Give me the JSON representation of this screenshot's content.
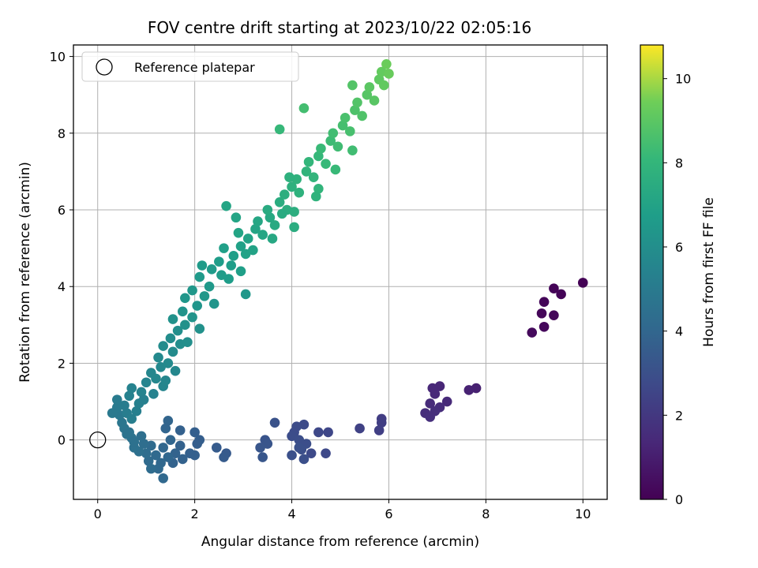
{
  "chart_data": {
    "type": "scatter",
    "title": "FOV centre drift starting at 2023/10/22 02:05:16",
    "xlabel": "Angular distance from reference (arcmin)",
    "ylabel": "Rotation from reference (arcmin)",
    "xlim": [
      -0.5,
      10.5
    ],
    "ylim": [
      -1.55,
      10.3
    ],
    "xticks": [
      0,
      2,
      4,
      6,
      8,
      10
    ],
    "yticks": [
      0,
      2,
      4,
      6,
      8,
      10
    ],
    "grid": true,
    "legend": {
      "position": "top-left",
      "entries": [
        "Reference platepar"
      ]
    },
    "reference_point": {
      "x": 0,
      "y": 0,
      "label": "Reference platepar"
    },
    "colorbar": {
      "label": "Hours from first FF file",
      "range": [
        0,
        10.8
      ],
      "ticks": [
        0,
        2,
        4,
        6,
        8,
        10
      ],
      "colormap": "viridis"
    },
    "series": [
      {
        "color_by": "hours",
        "points": [
          {
            "x": 10.0,
            "y": 4.1,
            "h": 0.05
          },
          {
            "x": 9.4,
            "y": 3.95,
            "h": 0.1
          },
          {
            "x": 9.55,
            "y": 3.8,
            "h": 0.12
          },
          {
            "x": 9.2,
            "y": 3.6,
            "h": 0.15
          },
          {
            "x": 9.15,
            "y": 3.3,
            "h": 0.2
          },
          {
            "x": 9.4,
            "y": 3.25,
            "h": 0.22
          },
          {
            "x": 9.2,
            "y": 2.95,
            "h": 0.25
          },
          {
            "x": 8.95,
            "y": 2.8,
            "h": 0.3
          },
          {
            "x": 7.8,
            "y": 1.35,
            "h": 1.1
          },
          {
            "x": 7.65,
            "y": 1.3,
            "h": 1.15
          },
          {
            "x": 7.05,
            "y": 1.4,
            "h": 1.3
          },
          {
            "x": 6.9,
            "y": 1.35,
            "h": 1.35
          },
          {
            "x": 6.95,
            "y": 1.2,
            "h": 1.4
          },
          {
            "x": 7.2,
            "y": 1.0,
            "h": 1.45
          },
          {
            "x": 6.85,
            "y": 0.95,
            "h": 1.5
          },
          {
            "x": 7.05,
            "y": 0.85,
            "h": 1.55
          },
          {
            "x": 6.75,
            "y": 0.7,
            "h": 1.6
          },
          {
            "x": 6.95,
            "y": 0.75,
            "h": 1.62
          },
          {
            "x": 6.85,
            "y": 0.6,
            "h": 1.65
          },
          {
            "x": 5.85,
            "y": 0.55,
            "h": 2.2
          },
          {
            "x": 5.85,
            "y": 0.45,
            "h": 2.25
          },
          {
            "x": 5.8,
            "y": 0.25,
            "h": 2.3
          },
          {
            "x": 5.4,
            "y": 0.3,
            "h": 2.4
          },
          {
            "x": 4.75,
            "y": 0.2,
            "h": 2.6
          },
          {
            "x": 4.55,
            "y": 0.2,
            "h": 2.65
          },
          {
            "x": 4.7,
            "y": -0.35,
            "h": 2.7
          },
          {
            "x": 4.4,
            "y": -0.35,
            "h": 2.75
          },
          {
            "x": 4.25,
            "y": 0.4,
            "h": 2.8
          },
          {
            "x": 4.1,
            "y": 0.35,
            "h": 2.82
          },
          {
            "x": 4.05,
            "y": 0.2,
            "h": 2.85
          },
          {
            "x": 4.0,
            "y": 0.1,
            "h": 2.87
          },
          {
            "x": 4.15,
            "y": 0.0,
            "h": 2.9
          },
          {
            "x": 4.3,
            "y": -0.1,
            "h": 2.92
          },
          {
            "x": 4.2,
            "y": -0.25,
            "h": 2.95
          },
          {
            "x": 4.25,
            "y": -0.5,
            "h": 2.97
          },
          {
            "x": 4.0,
            "y": -0.4,
            "h": 3.0
          },
          {
            "x": 4.15,
            "y": -0.2,
            "h": 3.02
          },
          {
            "x": 3.65,
            "y": 0.45,
            "h": 3.1
          },
          {
            "x": 3.45,
            "y": 0.0,
            "h": 3.2
          },
          {
            "x": 3.5,
            "y": -0.1,
            "h": 3.22
          },
          {
            "x": 3.35,
            "y": -0.2,
            "h": 3.25
          },
          {
            "x": 3.4,
            "y": -0.45,
            "h": 3.28
          },
          {
            "x": 2.65,
            "y": -0.35,
            "h": 3.45
          },
          {
            "x": 2.6,
            "y": -0.45,
            "h": 3.48
          },
          {
            "x": 2.45,
            "y": -0.2,
            "h": 3.5
          },
          {
            "x": 2.1,
            "y": 0.0,
            "h": 3.6
          },
          {
            "x": 2.05,
            "y": -0.1,
            "h": 3.62
          },
          {
            "x": 2.0,
            "y": 0.2,
            "h": 3.65
          },
          {
            "x": 2.0,
            "y": -0.4,
            "h": 3.68
          },
          {
            "x": 1.9,
            "y": -0.35,
            "h": 3.7
          },
          {
            "x": 1.7,
            "y": 0.25,
            "h": 3.75
          },
          {
            "x": 1.7,
            "y": -0.15,
            "h": 3.78
          },
          {
            "x": 1.75,
            "y": -0.5,
            "h": 3.8
          },
          {
            "x": 1.6,
            "y": -0.35,
            "h": 3.82
          },
          {
            "x": 1.55,
            "y": -0.6,
            "h": 3.85
          },
          {
            "x": 1.45,
            "y": 0.5,
            "h": 3.9
          },
          {
            "x": 1.4,
            "y": 0.3,
            "h": 3.92
          },
          {
            "x": 1.5,
            "y": 0.0,
            "h": 3.95
          },
          {
            "x": 1.35,
            "y": -0.2,
            "h": 4.0
          },
          {
            "x": 1.45,
            "y": -0.45,
            "h": 4.02
          },
          {
            "x": 1.3,
            "y": -0.6,
            "h": 4.05
          },
          {
            "x": 1.35,
            "y": -1.0,
            "h": 4.1
          },
          {
            "x": 1.25,
            "y": -0.75,
            "h": 4.12
          },
          {
            "x": 1.2,
            "y": -0.4,
            "h": 4.15
          },
          {
            "x": 1.1,
            "y": -0.15,
            "h": 4.2
          },
          {
            "x": 1.05,
            "y": -0.55,
            "h": 4.22
          },
          {
            "x": 1.1,
            "y": -0.75,
            "h": 4.25
          },
          {
            "x": 1.0,
            "y": -0.35,
            "h": 4.3
          },
          {
            "x": 0.95,
            "y": -0.1,
            "h": 4.35
          },
          {
            "x": 0.9,
            "y": 0.1,
            "h": 4.4
          },
          {
            "x": 0.85,
            "y": -0.3,
            "h": 4.45
          },
          {
            "x": 0.75,
            "y": -0.2,
            "h": 4.5
          },
          {
            "x": 0.7,
            "y": 0.05,
            "h": 4.55
          },
          {
            "x": 0.65,
            "y": 0.2,
            "h": 4.6
          },
          {
            "x": 0.55,
            "y": 0.3,
            "h": 4.7
          },
          {
            "x": 0.5,
            "y": 0.45,
            "h": 4.8
          },
          {
            "x": 0.45,
            "y": 0.65,
            "h": 4.9
          },
          {
            "x": 0.4,
            "y": 0.85,
            "h": 5.0
          },
          {
            "x": 0.4,
            "y": 1.05,
            "h": 5.05
          },
          {
            "x": 0.55,
            "y": 0.9,
            "h": 5.1
          },
          {
            "x": 0.6,
            "y": 0.7,
            "h": 5.15
          },
          {
            "x": 0.7,
            "y": 0.55,
            "h": 5.2
          },
          {
            "x": 0.8,
            "y": 0.75,
            "h": 5.25
          },
          {
            "x": 0.85,
            "y": 0.95,
            "h": 5.3
          },
          {
            "x": 0.65,
            "y": 1.15,
            "h": 5.35
          },
          {
            "x": 0.7,
            "y": 1.35,
            "h": 5.4
          },
          {
            "x": 0.9,
            "y": 1.25,
            "h": 5.45
          },
          {
            "x": 1.0,
            "y": 1.5,
            "h": 5.5
          },
          {
            "x": 1.1,
            "y": 1.75,
            "h": 5.6
          },
          {
            "x": 1.2,
            "y": 1.6,
            "h": 5.65
          },
          {
            "x": 1.3,
            "y": 1.9,
            "h": 5.7
          },
          {
            "x": 1.25,
            "y": 2.15,
            "h": 5.75
          },
          {
            "x": 1.45,
            "y": 2.0,
            "h": 5.8
          },
          {
            "x": 1.55,
            "y": 2.3,
            "h": 5.85
          },
          {
            "x": 1.35,
            "y": 2.45,
            "h": 5.9
          },
          {
            "x": 1.5,
            "y": 2.65,
            "h": 5.95
          },
          {
            "x": 1.7,
            "y": 2.5,
            "h": 6.0
          },
          {
            "x": 1.65,
            "y": 2.85,
            "h": 6.05
          },
          {
            "x": 1.8,
            "y": 3.0,
            "h": 6.1
          },
          {
            "x": 1.55,
            "y": 3.15,
            "h": 6.15
          },
          {
            "x": 1.75,
            "y": 3.35,
            "h": 6.2
          },
          {
            "x": 1.95,
            "y": 3.2,
            "h": 6.25
          },
          {
            "x": 2.05,
            "y": 3.5,
            "h": 6.3
          },
          {
            "x": 1.8,
            "y": 3.7,
            "h": 6.35
          },
          {
            "x": 1.95,
            "y": 3.9,
            "h": 6.4
          },
          {
            "x": 2.2,
            "y": 3.75,
            "h": 6.45
          },
          {
            "x": 2.3,
            "y": 4.0,
            "h": 6.5
          },
          {
            "x": 2.1,
            "y": 4.25,
            "h": 6.55
          },
          {
            "x": 2.35,
            "y": 4.45,
            "h": 6.6
          },
          {
            "x": 2.55,
            "y": 4.3,
            "h": 6.65
          },
          {
            "x": 2.5,
            "y": 4.65,
            "h": 6.7
          },
          {
            "x": 2.75,
            "y": 4.55,
            "h": 6.75
          },
          {
            "x": 2.8,
            "y": 4.8,
            "h": 6.8
          },
          {
            "x": 2.6,
            "y": 5.0,
            "h": 6.85
          },
          {
            "x": 2.95,
            "y": 5.05,
            "h": 6.9
          },
          {
            "x": 3.05,
            "y": 4.85,
            "h": 6.95
          },
          {
            "x": 3.1,
            "y": 5.25,
            "h": 7.0
          },
          {
            "x": 2.9,
            "y": 5.4,
            "h": 7.05
          },
          {
            "x": 3.25,
            "y": 5.5,
            "h": 7.1
          },
          {
            "x": 3.4,
            "y": 5.35,
            "h": 7.15
          },
          {
            "x": 3.3,
            "y": 5.7,
            "h": 7.2
          },
          {
            "x": 3.55,
            "y": 5.8,
            "h": 7.3
          },
          {
            "x": 3.65,
            "y": 5.6,
            "h": 7.35
          },
          {
            "x": 3.5,
            "y": 6.0,
            "h": 7.4
          },
          {
            "x": 3.75,
            "y": 6.2,
            "h": 7.5
          },
          {
            "x": 3.9,
            "y": 6.0,
            "h": 7.55
          },
          {
            "x": 3.85,
            "y": 6.4,
            "h": 7.6
          },
          {
            "x": 4.0,
            "y": 6.6,
            "h": 7.7
          },
          {
            "x": 4.15,
            "y": 6.45,
            "h": 7.75
          },
          {
            "x": 4.1,
            "y": 6.8,
            "h": 7.8
          },
          {
            "x": 4.3,
            "y": 7.0,
            "h": 7.9
          },
          {
            "x": 4.45,
            "y": 6.85,
            "h": 7.95
          },
          {
            "x": 4.35,
            "y": 7.25,
            "h": 8.0
          },
          {
            "x": 4.55,
            "y": 7.4,
            "h": 8.1
          },
          {
            "x": 4.7,
            "y": 7.2,
            "h": 8.15
          },
          {
            "x": 4.6,
            "y": 7.6,
            "h": 8.2
          },
          {
            "x": 4.8,
            "y": 7.8,
            "h": 8.3
          },
          {
            "x": 4.95,
            "y": 7.65,
            "h": 8.35
          },
          {
            "x": 4.85,
            "y": 8.0,
            "h": 8.4
          },
          {
            "x": 5.05,
            "y": 8.2,
            "h": 8.5
          },
          {
            "x": 5.2,
            "y": 8.05,
            "h": 8.55
          },
          {
            "x": 5.1,
            "y": 8.4,
            "h": 8.6
          },
          {
            "x": 5.3,
            "y": 8.6,
            "h": 8.7
          },
          {
            "x": 5.45,
            "y": 8.45,
            "h": 8.75
          },
          {
            "x": 5.35,
            "y": 8.8,
            "h": 8.8
          },
          {
            "x": 5.55,
            "y": 9.0,
            "h": 8.9
          },
          {
            "x": 5.7,
            "y": 8.85,
            "h": 8.95
          },
          {
            "x": 5.6,
            "y": 9.2,
            "h": 9.0
          },
          {
            "x": 5.8,
            "y": 9.4,
            "h": 9.1
          },
          {
            "x": 5.9,
            "y": 9.25,
            "h": 9.15
          },
          {
            "x": 5.85,
            "y": 9.6,
            "h": 9.2
          },
          {
            "x": 6.0,
            "y": 9.55,
            "h": 9.3
          },
          {
            "x": 5.95,
            "y": 9.8,
            "h": 9.35
          },
          {
            "x": 1.35,
            "y": 1.4,
            "h": 5.55
          },
          {
            "x": 0.95,
            "y": 1.05,
            "h": 5.28
          },
          {
            "x": 1.15,
            "y": 1.2,
            "h": 5.42
          },
          {
            "x": 0.6,
            "y": 0.15,
            "h": 4.62
          },
          {
            "x": 0.75,
            "y": -0.05,
            "h": 4.52
          },
          {
            "x": 0.3,
            "y": 0.7,
            "h": 4.92
          },
          {
            "x": 1.6,
            "y": 1.8,
            "h": 5.62
          },
          {
            "x": 1.4,
            "y": 1.55,
            "h": 5.58
          },
          {
            "x": 1.85,
            "y": 2.55,
            "h": 6.02
          },
          {
            "x": 2.1,
            "y": 2.9,
            "h": 6.12
          },
          {
            "x": 2.4,
            "y": 3.55,
            "h": 6.32
          },
          {
            "x": 2.15,
            "y": 4.55,
            "h": 6.62
          },
          {
            "x": 2.7,
            "y": 4.2,
            "h": 6.72
          },
          {
            "x": 2.95,
            "y": 4.4,
            "h": 6.82
          },
          {
            "x": 3.2,
            "y": 4.95,
            "h": 6.98
          },
          {
            "x": 2.85,
            "y": 5.8,
            "h": 7.08
          },
          {
            "x": 3.6,
            "y": 5.25,
            "h": 7.25
          },
          {
            "x": 3.8,
            "y": 5.9,
            "h": 7.45
          },
          {
            "x": 4.05,
            "y": 5.95,
            "h": 7.58
          },
          {
            "x": 3.95,
            "y": 6.85,
            "h": 7.72
          },
          {
            "x": 4.55,
            "y": 6.55,
            "h": 7.92
          },
          {
            "x": 3.75,
            "y": 8.1,
            "h": 8.12
          },
          {
            "x": 4.25,
            "y": 8.65,
            "h": 8.45
          },
          {
            "x": 5.25,
            "y": 9.25,
            "h": 8.82
          },
          {
            "x": 2.65,
            "y": 6.1,
            "h": 7.12
          },
          {
            "x": 3.05,
            "y": 3.8,
            "h": 6.42
          },
          {
            "x": 4.05,
            "y": 5.55,
            "h": 7.52
          },
          {
            "x": 4.5,
            "y": 6.35,
            "h": 7.82
          },
          {
            "x": 4.9,
            "y": 7.05,
            "h": 8.18
          },
          {
            "x": 5.25,
            "y": 7.55,
            "h": 8.38
          }
        ]
      }
    ]
  }
}
